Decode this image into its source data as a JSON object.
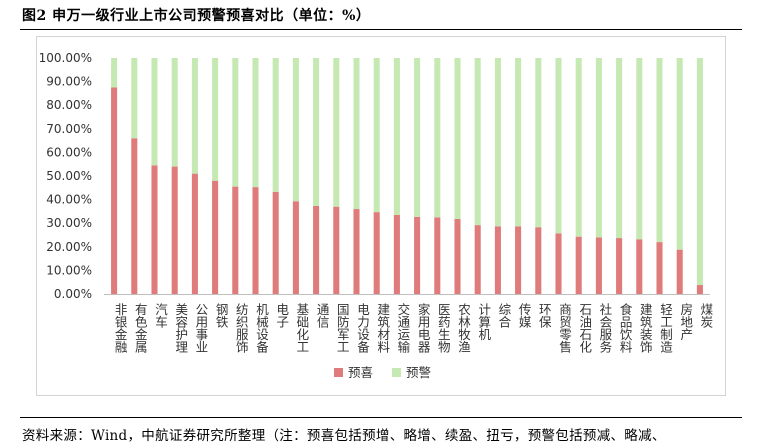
{
  "figure": {
    "title": "图2  申万一级行业上市公司预警预喜对比（单位：%）",
    "source": "资料来源：Wind，中航证券研究所整理（注：预喜包括预增、略增、续盈、扭亏，预警包括预减、略减、"
  },
  "chart_data": {
    "type": "bar",
    "stacked": true,
    "categories": [
      "非银金融",
      "有色金属",
      "汽车",
      "美容护理",
      "公用事业",
      "钢铁",
      "纺织服饰",
      "机械设备",
      "电子",
      "基础化工",
      "通信",
      "国防军工",
      "电力设备",
      "建筑材料",
      "交通运输",
      "家用电器",
      "医药生物",
      "农林牧渔",
      "计算机",
      "综合",
      "传媒",
      "环保",
      "商贸零售",
      "石油石化",
      "社会服务",
      "食品饮料",
      "建筑装饰",
      "轻工制造",
      "房地产",
      "煤炭"
    ],
    "series": [
      {
        "name": "预喜",
        "color": "#e07b7b",
        "values": [
          87.5,
          66.0,
          54.5,
          54.0,
          51.0,
          48.0,
          45.5,
          45.3,
          43.3,
          39.3,
          37.3,
          37.0,
          36.0,
          34.7,
          33.5,
          32.7,
          32.5,
          31.8,
          29.2,
          28.7,
          28.7,
          28.3,
          25.7,
          24.3,
          24.0,
          23.7,
          23.2,
          22.0,
          18.8,
          3.8
        ]
      },
      {
        "name": "预警",
        "color": "#c6e9b4",
        "values": [
          12.5,
          34.0,
          45.5,
          46.0,
          49.0,
          52.0,
          54.5,
          54.7,
          56.7,
          60.7,
          62.7,
          63.0,
          64.0,
          65.3,
          66.5,
          67.3,
          67.5,
          68.2,
          70.8,
          71.3,
          71.3,
          71.7,
          74.3,
          75.7,
          76.0,
          76.3,
          76.8,
          78.0,
          81.2,
          96.2
        ]
      }
    ],
    "y_ticks": [
      "0.00%",
      "10.00%",
      "20.00%",
      "30.00%",
      "40.00%",
      "50.00%",
      "60.00%",
      "70.00%",
      "80.00%",
      "90.00%",
      "100.00%"
    ],
    "ylim": [
      0,
      100
    ],
    "grid": false,
    "legend_position": "bottom"
  }
}
